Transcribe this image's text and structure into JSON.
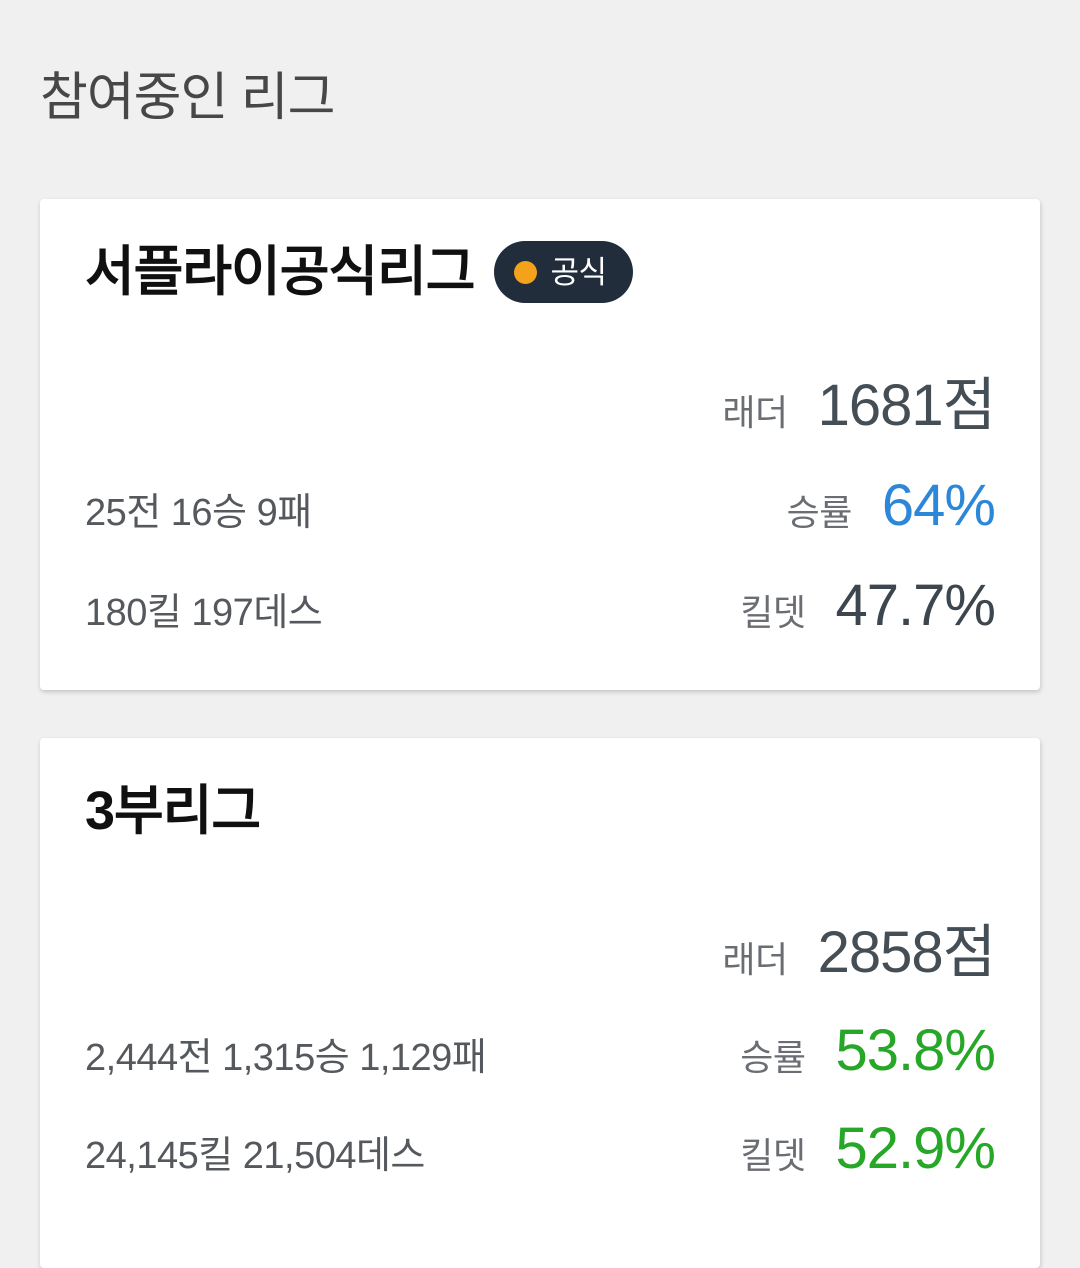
{
  "page": {
    "title": "참여중인 리그",
    "background_color": "#f0f0f0"
  },
  "colors": {
    "value_slate": "#454e55",
    "value_blue": "#2d87d8",
    "value_green": "#27a727",
    "badge_bg": "#222d3c",
    "badge_dot": "#f4a21c",
    "badge_text": "#ffffff"
  },
  "cards": [
    {
      "title": "서플라이공식리그",
      "badge": {
        "label": "공식",
        "bg": "#222d3c",
        "dot_color": "#f4a21c",
        "text_color": "#ffffff"
      },
      "rows": [
        {
          "left": "",
          "label": "래더",
          "value": "1681점",
          "value_color": "#454e55"
        },
        {
          "left": "25전 16승 9패",
          "label": "승률",
          "value": "64%",
          "value_color": "#2d87d8"
        },
        {
          "left": "180킬 197데스",
          "label": "킬뎃",
          "value": "47.7%",
          "value_color": "#3d464e"
        }
      ]
    },
    {
      "title": "3부리그",
      "rows": [
        {
          "left": "",
          "label": "래더",
          "value": "2858점",
          "value_color": "#454e55"
        },
        {
          "left": "2,444전 1,315승 1,129패",
          "label": "승률",
          "value": "53.8%",
          "value_color": "#27a727"
        },
        {
          "left": "24,145킬 21,504데스",
          "label": "킬뎃",
          "value": "52.9%",
          "value_color": "#27a727"
        }
      ]
    }
  ]
}
